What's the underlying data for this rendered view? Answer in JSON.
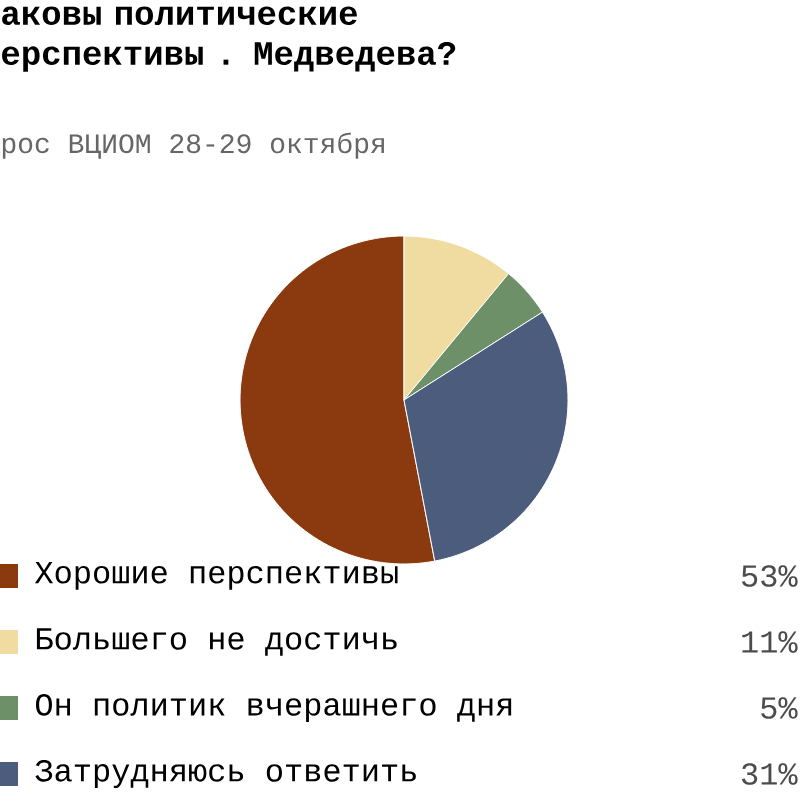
{
  "chart_data": {
    "type": "pie",
    "title": "аковы политические ерспективы . Медведева?",
    "subtitle": "рос ВЦИОМ 28-29 октября",
    "categories": [
      "Хорошие перспективы",
      "Большего не достичь",
      "Он политик вчерашнего дня",
      "Затрудняюсь ответить"
    ],
    "values": [
      53,
      11,
      5,
      31
    ],
    "value_labels": [
      "53%",
      "11%",
      "5%",
      "31%"
    ],
    "colors": [
      "#8b3a10",
      "#f0dba0",
      "#6e9068",
      "#4c5c7c"
    ],
    "legend": "bottom"
  }
}
